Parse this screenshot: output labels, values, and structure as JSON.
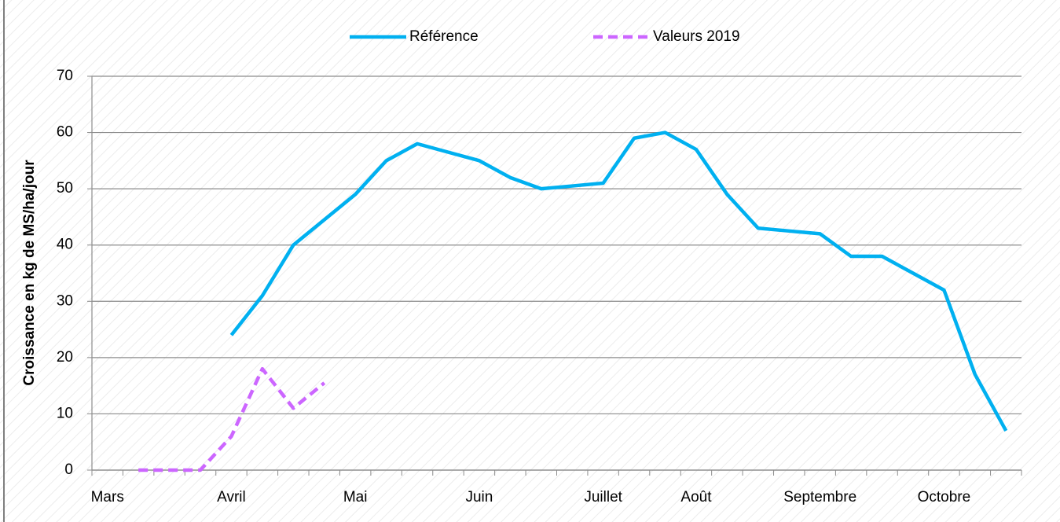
{
  "chart_data": {
    "type": "line",
    "y_label": "Croissance en kg de MS/ha/jour",
    "categories": [
      "Mars",
      null,
      null,
      null,
      "Avril",
      null,
      null,
      null,
      "Mai",
      null,
      null,
      null,
      "Juin",
      null,
      null,
      null,
      "Juillet",
      null,
      null,
      "Août",
      null,
      null,
      null,
      "Septembre",
      null,
      null,
      null,
      "Octobre",
      null,
      null
    ],
    "series": [
      {
        "name": "Référence",
        "color": "#00b0f0",
        "dashed": false,
        "values": [
          null,
          null,
          null,
          null,
          24,
          31,
          40,
          44.5,
          49,
          55,
          58,
          56.5,
          55,
          52,
          50,
          50.5,
          51,
          59,
          60,
          57,
          49,
          43,
          42.5,
          42,
          38,
          38,
          35,
          32,
          17,
          7
        ]
      },
      {
        "name": "Valeurs 2019",
        "color": "#cc66ff",
        "dashed": true,
        "values": [
          null,
          0,
          0,
          0,
          6,
          18,
          11,
          15.5,
          null,
          null,
          null,
          null,
          null,
          null,
          null,
          null,
          null,
          null,
          null,
          null,
          null,
          null,
          null,
          null,
          null,
          null,
          null,
          null,
          null,
          null
        ]
      }
    ],
    "ylim": [
      0,
      70
    ],
    "yticks": [
      0,
      10,
      20,
      30,
      40,
      50,
      60,
      70
    ],
    "grid": true,
    "legend": "top"
  }
}
